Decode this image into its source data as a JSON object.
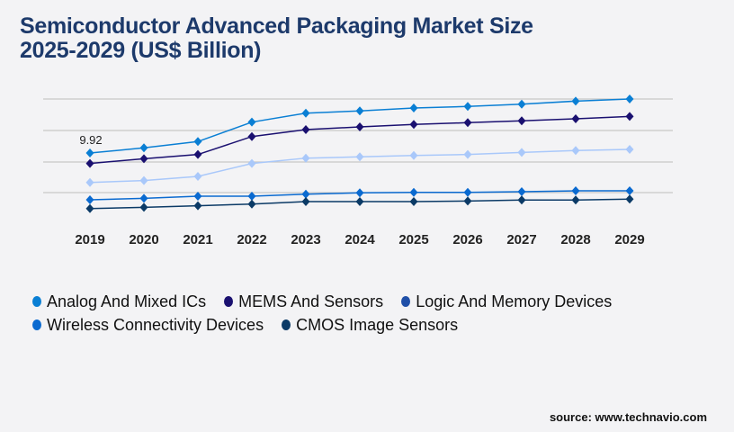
{
  "title_line1": "Semiconductor Advanced Packaging Market Size",
  "title_line2": "2025-2029 (US$ Billion)",
  "source": "source: www.technavio.com",
  "chart_data": {
    "type": "line",
    "x": [
      "2019",
      "2020",
      "2021",
      "2022",
      "2023",
      "2024",
      "2025",
      "2026",
      "2027",
      "2028",
      "2029"
    ],
    "ylim": [
      0,
      18
    ],
    "grid": true,
    "legend_placement": "bottom",
    "annotations": [
      {
        "series": "Analog And Mixed ICs",
        "x": "2019",
        "text": "9.92"
      }
    ],
    "series": [
      {
        "name": "Analog And Mixed ICs",
        "color": "#0a7fd4",
        "legend_color": "#0a7fd4",
        "values": [
          9.92,
          10.65,
          11.54,
          14.29,
          15.56,
          15.87,
          16.28,
          16.5,
          16.83,
          17.26,
          17.56
        ]
      },
      {
        "name": "MEMS And Sensors",
        "color": "#1a1070",
        "legend_color": "#1a1070",
        "values": [
          8.44,
          9.12,
          9.71,
          12.25,
          13.23,
          13.61,
          13.96,
          14.21,
          14.47,
          14.76,
          15.1
        ]
      },
      {
        "name": "Logic And Memory Devices",
        "color": "#a9c8fa",
        "legend_color": "#1f4fa8",
        "values": [
          5.76,
          6.02,
          6.62,
          8.44,
          9.2,
          9.38,
          9.58,
          9.71,
          10.01,
          10.27,
          10.43
        ]
      },
      {
        "name": "Wireless Connectivity Devices",
        "color": "#0a6ad0",
        "legend_color": "#0a6ad0",
        "values": [
          3.31,
          3.52,
          3.82,
          3.82,
          4.11,
          4.29,
          4.36,
          4.36,
          4.45,
          4.58,
          4.58
        ]
      },
      {
        "name": "CMOS Image Sensors",
        "color": "#0b3a66",
        "legend_color": "#0b3a66",
        "values": [
          2.07,
          2.25,
          2.46,
          2.71,
          3.05,
          3.05,
          3.05,
          3.14,
          3.27,
          3.27,
          3.4
        ]
      }
    ]
  }
}
